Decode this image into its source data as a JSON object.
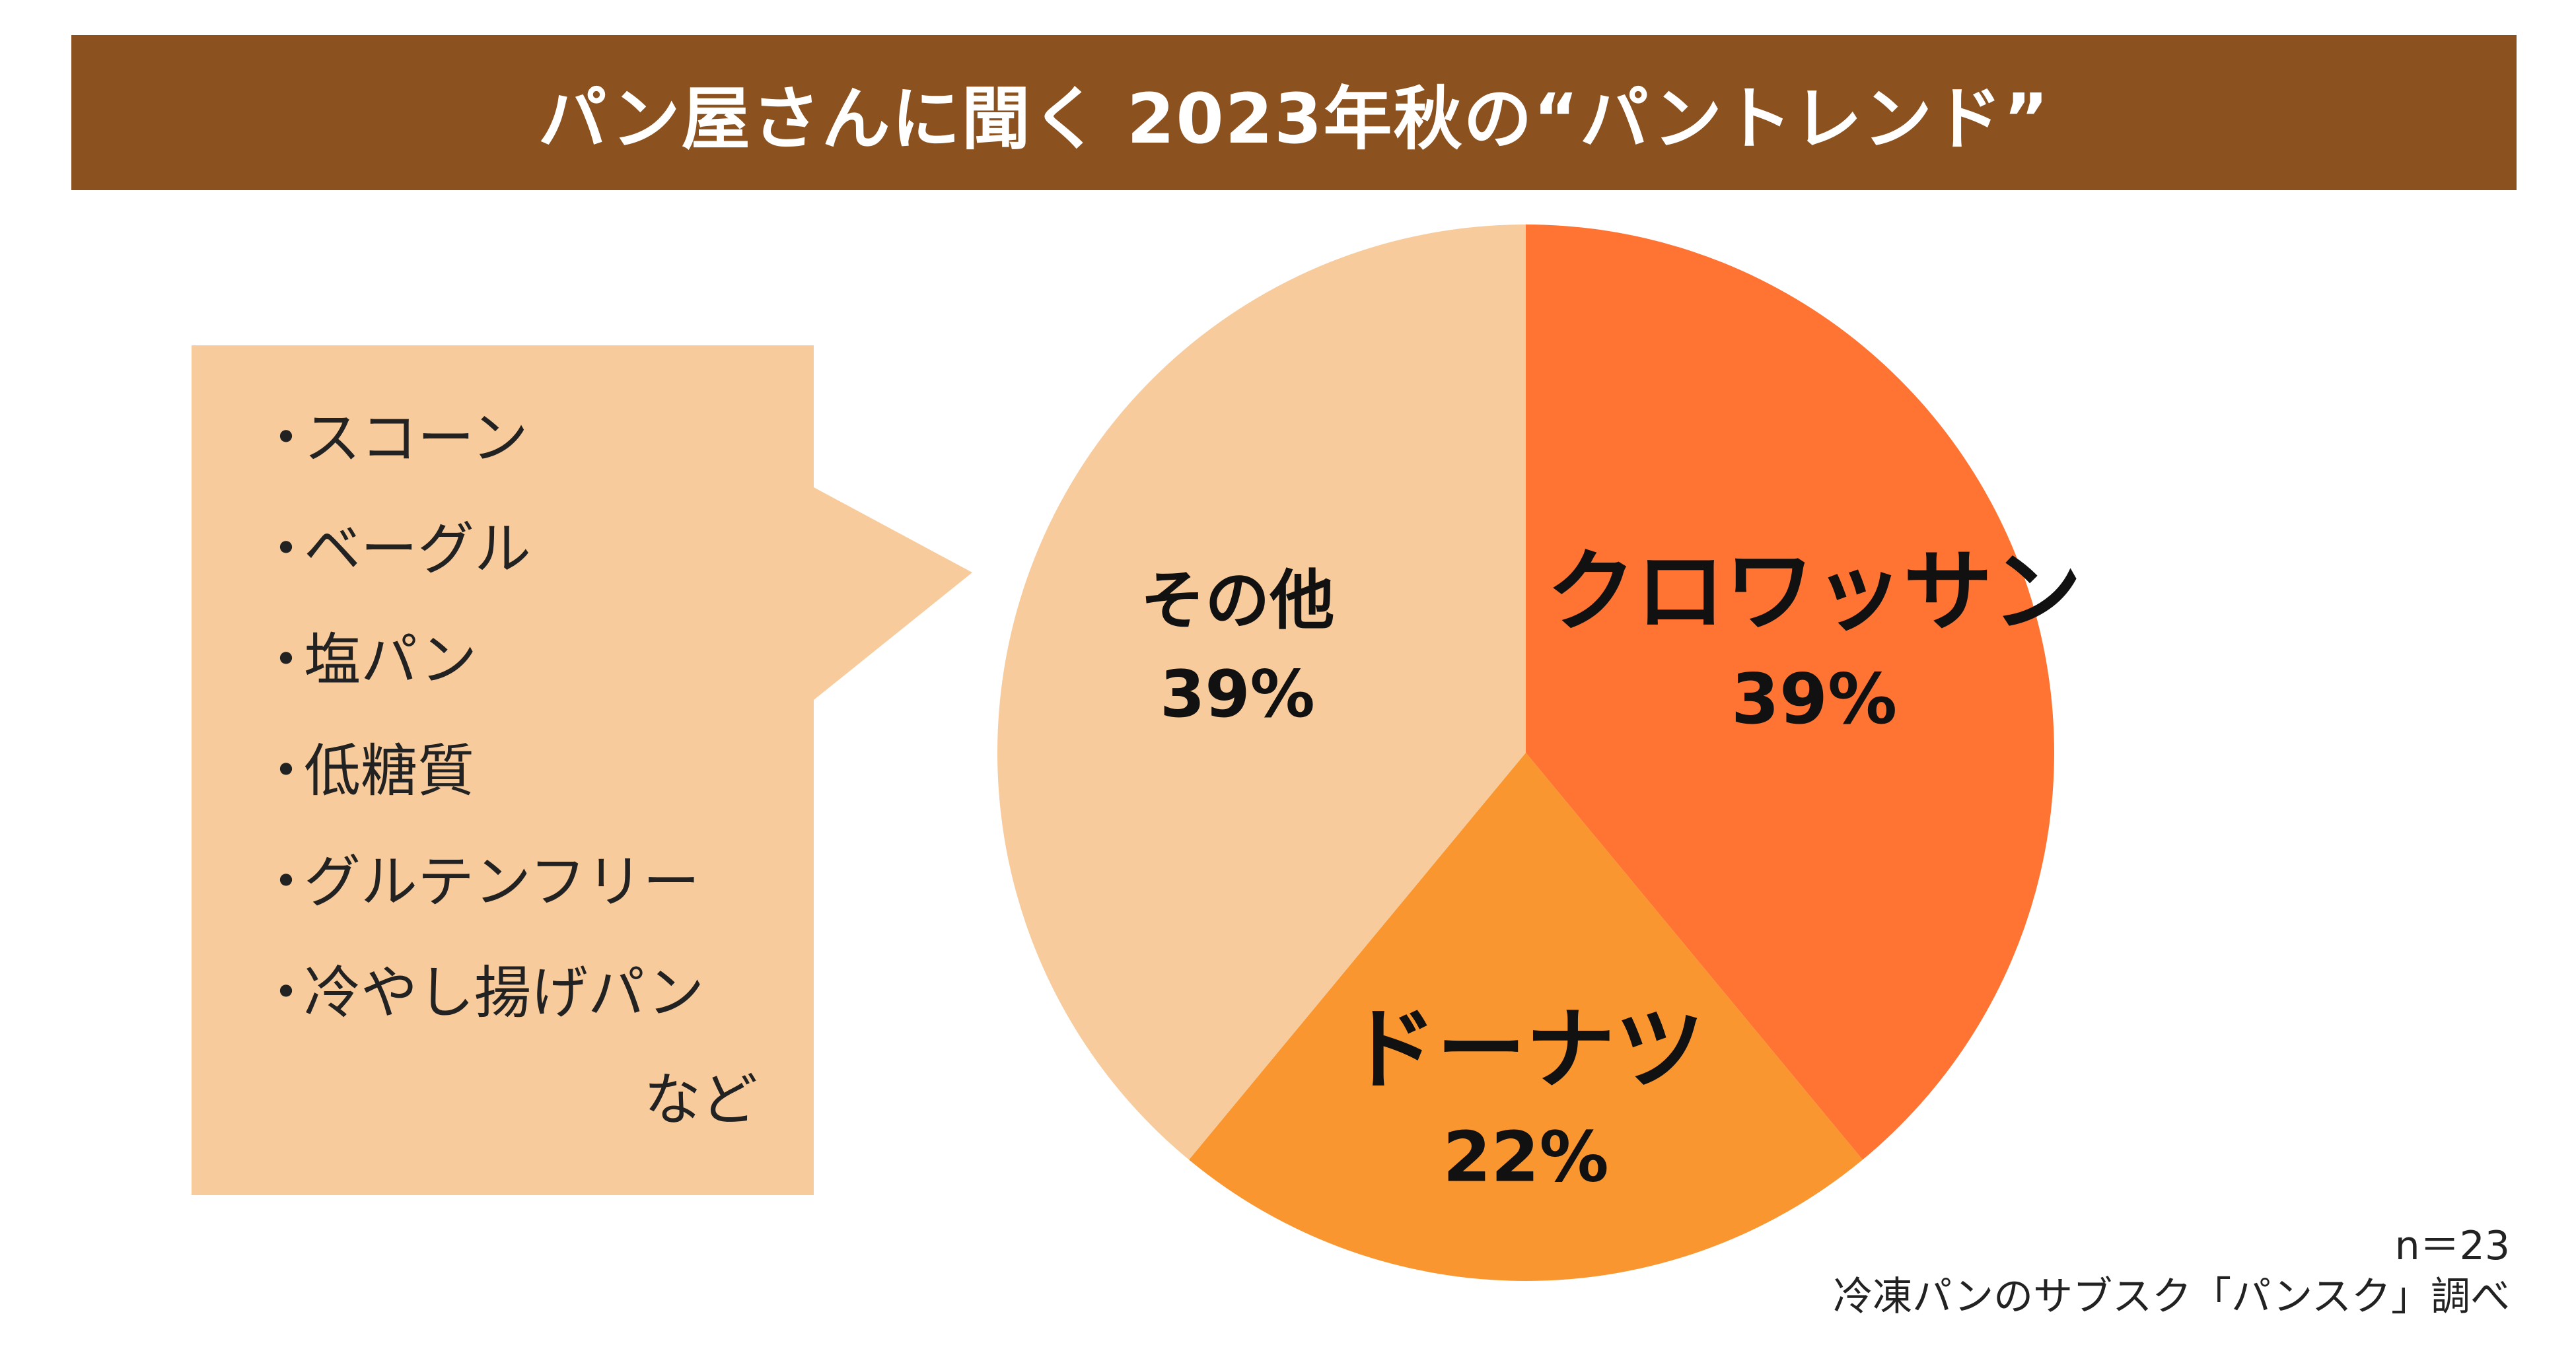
{
  "title": "パン屋さんに聞く 2023年秋の“パントレンド”",
  "colors": {
    "title_bar": "#8b5220",
    "croissant": "#ff7433",
    "donut": "#fa962f",
    "other": "#f7cb9c",
    "callout": "#f7cb9c"
  },
  "callout": {
    "items": [
      "スコーン",
      "ベーグル",
      "塩パン",
      "低糖質",
      "グルテンフリー",
      "冷やし揚げパン"
    ],
    "bullet": "・",
    "suffix": "など"
  },
  "chart_data": {
    "type": "pie",
    "slices": [
      {
        "label": "クロワッサン",
        "value": 39,
        "value_label": "39%",
        "color": "#ff7433"
      },
      {
        "label": "ドーナツ",
        "value": 22,
        "value_label": "22%",
        "color": "#fa962f"
      },
      {
        "label": "その他",
        "value": 39,
        "value_label": "39%",
        "color": "#f7cb9c"
      }
    ]
  },
  "footer": {
    "sample_size": "n＝23",
    "source": "冷凍パンのサブスク「パンスク」調べ"
  }
}
